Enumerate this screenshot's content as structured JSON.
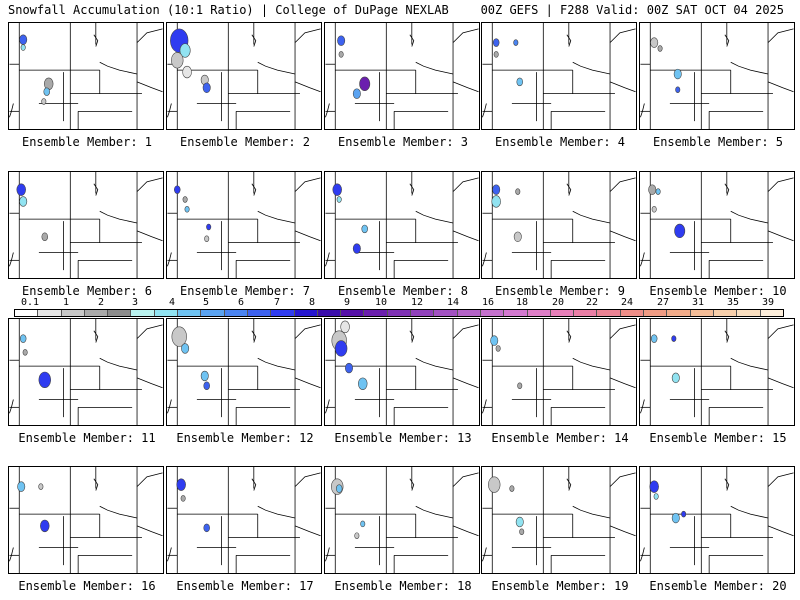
{
  "header": {
    "title": "Snowfall Accumulation (10:1 Ratio) | College of DuPage NEXLAB",
    "run_info": "00Z GEFS | F288 Valid: 00Z SAT OCT 04 2025"
  },
  "colorbar": {
    "ticks": [
      "0.1",
      "1",
      "2",
      "3",
      "4",
      "5",
      "6",
      "7",
      "8",
      "9",
      "10",
      "12",
      "14",
      "16",
      "18",
      "20",
      "22",
      "24",
      "27",
      "31",
      "35",
      "39"
    ],
    "colors": [
      "#ffffff",
      "#e6e6e6",
      "#c8c8c8",
      "#a9a9a9",
      "#8c8c8c",
      "#b9f2ef",
      "#91e3f1",
      "#6fc3f2",
      "#5aa3f1",
      "#4a84f1",
      "#3d62ef",
      "#2f3cf0",
      "#2516d0",
      "#3a0dab",
      "#5510a8",
      "#6b1fae",
      "#7e31b4",
      "#9041bb",
      "#a252c2",
      "#b463c8",
      "#c471cd",
      "#d379d0",
      "#df7ec8",
      "#e77fb9",
      "#ea7fa6",
      "#ec8394",
      "#ee8e88",
      "#f09c84",
      "#f2ac8a",
      "#f4bd98",
      "#f7cfab",
      "#fadfc0",
      "#fdeedb"
    ]
  },
  "members": [
    {
      "label": "Ensemble Member: 1",
      "blobs": [
        {
          "x": 14,
          "y": 17,
          "r": 5,
          "c": "#3d62ef"
        },
        {
          "x": 14,
          "y": 25,
          "r": 3,
          "c": "#91e3f1"
        },
        {
          "x": 40,
          "y": 62,
          "r": 6,
          "c": "#a9a9a9"
        },
        {
          "x": 38,
          "y": 70,
          "r": 4,
          "c": "#6fc3f2"
        },
        {
          "x": 35,
          "y": 80,
          "r": 3,
          "c": "#c8c8c8"
        }
      ]
    },
    {
      "label": "Ensemble Member: 2",
      "blobs": [
        {
          "x": 12,
          "y": 18,
          "r": 12,
          "c": "#2f3cf0"
        },
        {
          "x": 18,
          "y": 28,
          "r": 7,
          "c": "#91e3f1"
        },
        {
          "x": 10,
          "y": 38,
          "r": 8,
          "c": "#c8c8c8"
        },
        {
          "x": 38,
          "y": 58,
          "r": 5,
          "c": "#c8c8c8"
        },
        {
          "x": 40,
          "y": 66,
          "r": 5,
          "c": "#3d62ef"
        },
        {
          "x": 20,
          "y": 50,
          "r": 6,
          "c": "#e6e6e6"
        }
      ]
    },
    {
      "label": "Ensemble Member: 3",
      "blobs": [
        {
          "x": 16,
          "y": 18,
          "r": 5,
          "c": "#3d62ef"
        },
        {
          "x": 16,
          "y": 32,
          "r": 3,
          "c": "#a9a9a9"
        },
        {
          "x": 40,
          "y": 62,
          "r": 7,
          "c": "#6b1fae"
        },
        {
          "x": 32,
          "y": 72,
          "r": 5,
          "c": "#5aa3f1"
        }
      ]
    },
    {
      "label": "Ensemble Member: 4",
      "blobs": [
        {
          "x": 14,
          "y": 20,
          "r": 4,
          "c": "#3d62ef"
        },
        {
          "x": 34,
          "y": 20,
          "r": 3,
          "c": "#4a84f1"
        },
        {
          "x": 14,
          "y": 32,
          "r": 3,
          "c": "#a9a9a9"
        },
        {
          "x": 38,
          "y": 60,
          "r": 4,
          "c": "#6fc3f2"
        }
      ]
    },
    {
      "label": "Ensemble Member: 5",
      "blobs": [
        {
          "x": 14,
          "y": 20,
          "r": 5,
          "c": "#c8c8c8"
        },
        {
          "x": 20,
          "y": 26,
          "r": 3,
          "c": "#a9a9a9"
        },
        {
          "x": 38,
          "y": 52,
          "r": 5,
          "c": "#6fc3f2"
        },
        {
          "x": 38,
          "y": 68,
          "r": 3,
          "c": "#3d62ef"
        }
      ]
    },
    {
      "label": "Ensemble Member: 6",
      "blobs": [
        {
          "x": 12,
          "y": 18,
          "r": 6,
          "c": "#2f3cf0"
        },
        {
          "x": 14,
          "y": 30,
          "r": 5,
          "c": "#91e3f1"
        },
        {
          "x": 36,
          "y": 66,
          "r": 4,
          "c": "#a9a9a9"
        }
      ]
    },
    {
      "label": "Ensemble Member: 7",
      "blobs": [
        {
          "x": 10,
          "y": 18,
          "r": 4,
          "c": "#2f3cf0"
        },
        {
          "x": 18,
          "y": 28,
          "r": 3,
          "c": "#a9a9a9"
        },
        {
          "x": 20,
          "y": 38,
          "r": 3,
          "c": "#6fc3f2"
        },
        {
          "x": 42,
          "y": 56,
          "r": 3,
          "c": "#2f3cf0"
        },
        {
          "x": 40,
          "y": 68,
          "r": 3,
          "c": "#c8c8c8"
        }
      ]
    },
    {
      "label": "Ensemble Member: 8",
      "blobs": [
        {
          "x": 12,
          "y": 18,
          "r": 6,
          "c": "#2f3cf0"
        },
        {
          "x": 14,
          "y": 28,
          "r": 3,
          "c": "#91e3f1"
        },
        {
          "x": 40,
          "y": 58,
          "r": 4,
          "c": "#6fc3f2"
        },
        {
          "x": 32,
          "y": 78,
          "r": 5,
          "c": "#2f3cf0"
        }
      ]
    },
    {
      "label": "Ensemble Member: 9",
      "blobs": [
        {
          "x": 14,
          "y": 18,
          "r": 5,
          "c": "#3d62ef"
        },
        {
          "x": 14,
          "y": 30,
          "r": 6,
          "c": "#91e3f1"
        },
        {
          "x": 36,
          "y": 20,
          "r": 3,
          "c": "#a9a9a9"
        },
        {
          "x": 36,
          "y": 66,
          "r": 5,
          "c": "#c8c8c8"
        }
      ]
    },
    {
      "label": "Ensemble Member: 10",
      "blobs": [
        {
          "x": 12,
          "y": 18,
          "r": 5,
          "c": "#a9a9a9"
        },
        {
          "x": 18,
          "y": 20,
          "r": 3,
          "c": "#6fc3f2"
        },
        {
          "x": 14,
          "y": 38,
          "r": 3,
          "c": "#c8c8c8"
        },
        {
          "x": 40,
          "y": 60,
          "r": 7,
          "c": "#2f3cf0"
        }
      ]
    },
    {
      "label": "Ensemble Member: 11",
      "blobs": [
        {
          "x": 14,
          "y": 20,
          "r": 4,
          "c": "#6fc3f2"
        },
        {
          "x": 16,
          "y": 34,
          "r": 3,
          "c": "#a9a9a9"
        },
        {
          "x": 36,
          "y": 62,
          "r": 8,
          "c": "#2f3cf0"
        }
      ]
    },
    {
      "label": "Ensemble Member: 12",
      "blobs": [
        {
          "x": 12,
          "y": 18,
          "r": 10,
          "c": "#c8c8c8"
        },
        {
          "x": 18,
          "y": 30,
          "r": 5,
          "c": "#6fc3f2"
        },
        {
          "x": 38,
          "y": 58,
          "r": 5,
          "c": "#6fc3f2"
        },
        {
          "x": 40,
          "y": 68,
          "r": 4,
          "c": "#3d62ef"
        }
      ]
    },
    {
      "label": "Ensemble Member: 13",
      "blobs": [
        {
          "x": 14,
          "y": 22,
          "r": 10,
          "c": "#c8c8c8"
        },
        {
          "x": 16,
          "y": 30,
          "r": 8,
          "c": "#2f3cf0"
        },
        {
          "x": 24,
          "y": 50,
          "r": 5,
          "c": "#3d62ef"
        },
        {
          "x": 38,
          "y": 66,
          "r": 6,
          "c": "#6fc3f2"
        },
        {
          "x": 20,
          "y": 8,
          "r": 6,
          "c": "#e6e6e6"
        }
      ]
    },
    {
      "label": "Ensemble Member: 14",
      "blobs": [
        {
          "x": 12,
          "y": 22,
          "r": 5,
          "c": "#6fc3f2"
        },
        {
          "x": 16,
          "y": 30,
          "r": 3,
          "c": "#a9a9a9"
        },
        {
          "x": 38,
          "y": 68,
          "r": 3,
          "c": "#a9a9a9"
        }
      ]
    },
    {
      "label": "Ensemble Member: 15",
      "blobs": [
        {
          "x": 14,
          "y": 20,
          "r": 4,
          "c": "#6fc3f2"
        },
        {
          "x": 34,
          "y": 20,
          "r": 3,
          "c": "#2f3cf0"
        },
        {
          "x": 36,
          "y": 60,
          "r": 5,
          "c": "#91e3f1"
        }
      ]
    },
    {
      "label": "Ensemble Member: 16",
      "blobs": [
        {
          "x": 12,
          "y": 20,
          "r": 5,
          "c": "#6fc3f2"
        },
        {
          "x": 32,
          "y": 20,
          "r": 3,
          "c": "#c8c8c8"
        },
        {
          "x": 36,
          "y": 60,
          "r": 6,
          "c": "#2f3cf0"
        }
      ]
    },
    {
      "label": "Ensemble Member: 17",
      "blobs": [
        {
          "x": 14,
          "y": 18,
          "r": 6,
          "c": "#2f3cf0"
        },
        {
          "x": 16,
          "y": 32,
          "r": 3,
          "c": "#a9a9a9"
        },
        {
          "x": 40,
          "y": 62,
          "r": 4,
          "c": "#3d62ef"
        }
      ]
    },
    {
      "label": "Ensemble Member: 18",
      "blobs": [
        {
          "x": 12,
          "y": 20,
          "r": 8,
          "c": "#c8c8c8"
        },
        {
          "x": 14,
          "y": 22,
          "r": 4,
          "c": "#6fc3f2"
        },
        {
          "x": 38,
          "y": 58,
          "r": 3,
          "c": "#6fc3f2"
        },
        {
          "x": 32,
          "y": 70,
          "r": 3,
          "c": "#c8c8c8"
        }
      ]
    },
    {
      "label": "Ensemble Member: 19",
      "blobs": [
        {
          "x": 12,
          "y": 18,
          "r": 8,
          "c": "#c8c8c8"
        },
        {
          "x": 30,
          "y": 22,
          "r": 3,
          "c": "#a9a9a9"
        },
        {
          "x": 38,
          "y": 56,
          "r": 5,
          "c": "#91e3f1"
        },
        {
          "x": 40,
          "y": 66,
          "r": 3,
          "c": "#a9a9a9"
        }
      ]
    },
    {
      "label": "Ensemble Member: 20",
      "blobs": [
        {
          "x": 14,
          "y": 20,
          "r": 6,
          "c": "#2f3cf0"
        },
        {
          "x": 16,
          "y": 30,
          "r": 3,
          "c": "#91e3f1"
        },
        {
          "x": 36,
          "y": 52,
          "r": 5,
          "c": "#6fc3f2"
        },
        {
          "x": 44,
          "y": 48,
          "r": 3,
          "c": "#2f3cf0"
        }
      ]
    }
  ]
}
